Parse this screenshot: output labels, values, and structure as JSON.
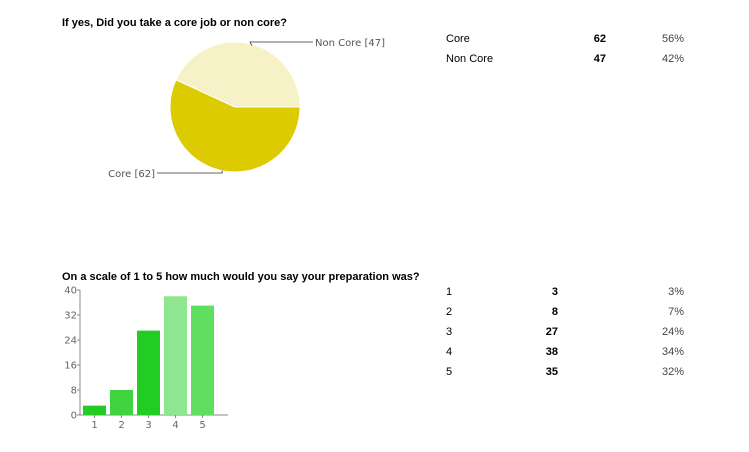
{
  "q1": {
    "title": "If yes, Did you take a core job or non core?",
    "rows": [
      {
        "label": "Core",
        "count": "62",
        "pct": "56%"
      },
      {
        "label": "Non Core",
        "count": "47",
        "pct": "42%"
      }
    ]
  },
  "q2": {
    "title": "On a scale of 1 to 5 how much would you say your preparation was?",
    "rows": [
      {
        "label": "1",
        "count": "3",
        "pct": "3%"
      },
      {
        "label": "2",
        "count": "8",
        "pct": "7%"
      },
      {
        "label": "3",
        "count": "27",
        "pct": "24%"
      },
      {
        "label": "4",
        "count": "38",
        "pct": "34%"
      },
      {
        "label": "5",
        "count": "35",
        "pct": "32%"
      }
    ]
  },
  "colors": {
    "core": "#dccb00",
    "non_core": "#f6f1c6",
    "bar_1": "#22cc22",
    "bar_2": "#3fd43f",
    "bar_3": "#22cc22",
    "bar_4": "#8ee68e",
    "bar_5": "#5fde5f",
    "axis": "#888888"
  },
  "chart_data": [
    {
      "type": "pie",
      "labels": [
        "Core",
        "Non Core"
      ],
      "values": [
        62,
        47
      ],
      "slice_labels": [
        "Core [62]",
        "Non Core [47]"
      ]
    },
    {
      "type": "bar",
      "categories": [
        "1",
        "2",
        "3",
        "4",
        "5"
      ],
      "values": [
        3,
        8,
        27,
        38,
        35
      ],
      "ylim": [
        0,
        40
      ],
      "yticks": [
        0,
        8,
        16,
        24,
        32,
        40
      ]
    }
  ]
}
